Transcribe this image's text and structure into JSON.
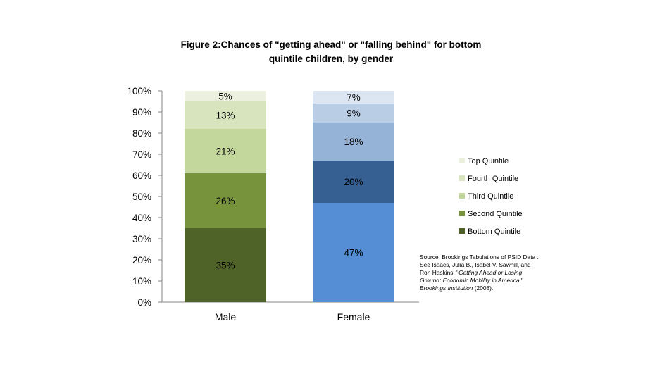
{
  "chart_data": {
    "type": "bar",
    "stacked": true,
    "title_line1": "Figure 2:Chances of \"getting ahead\" or \"falling behind\" for bottom",
    "title_line2": "quintile children, by gender",
    "categories": [
      "Male",
      "Female"
    ],
    "ylim": [
      0,
      100
    ],
    "yticks": [
      "0%",
      "10%",
      "20%",
      "30%",
      "40%",
      "50%",
      "60%",
      "70%",
      "80%",
      "90%",
      "100%"
    ],
    "series": [
      {
        "name": "Bottom Quintile",
        "values": [
          35,
          47
        ],
        "labels": [
          "35%",
          "47%"
        ]
      },
      {
        "name": "Second Quintile",
        "values": [
          26,
          20
        ],
        "labels": [
          "26%",
          "20%"
        ]
      },
      {
        "name": "Third Quintile",
        "values": [
          21,
          18
        ],
        "labels": [
          "21%",
          "18%"
        ]
      },
      {
        "name": "Fourth Quintile",
        "values": [
          13,
          9
        ],
        "labels": [
          "13%",
          "9%"
        ]
      },
      {
        "name": "Top Quintile",
        "values": [
          5,
          7
        ],
        "labels": [
          "5%",
          "7%"
        ]
      }
    ],
    "colors": {
      "Male": [
        "#4f6228",
        "#77933c",
        "#c3d69b",
        "#d7e4bd",
        "#ebf1de"
      ],
      "Female": [
        "#558ed5",
        "#376092",
        "#95b3d7",
        "#b9cde5",
        "#dce6f2"
      ]
    },
    "legend_colors": [
      "#4f6228",
      "#77933c",
      "#c3d69b",
      "#d7e4bd",
      "#ebf1de"
    ],
    "legend_position": "right",
    "grid": false
  },
  "source": {
    "prefix": "Source:  Brookings Tabulations of PSID Data . See Isaacs, Julia B., Isabel V. Sawhill, and Ron Haskins. \"",
    "italic_title": "Getting Ahead or Losing Ground: Economic Mobility in America.",
    "mid": "\" ",
    "italic_publisher": "Brookings Institution",
    "suffix": " (2008)."
  }
}
